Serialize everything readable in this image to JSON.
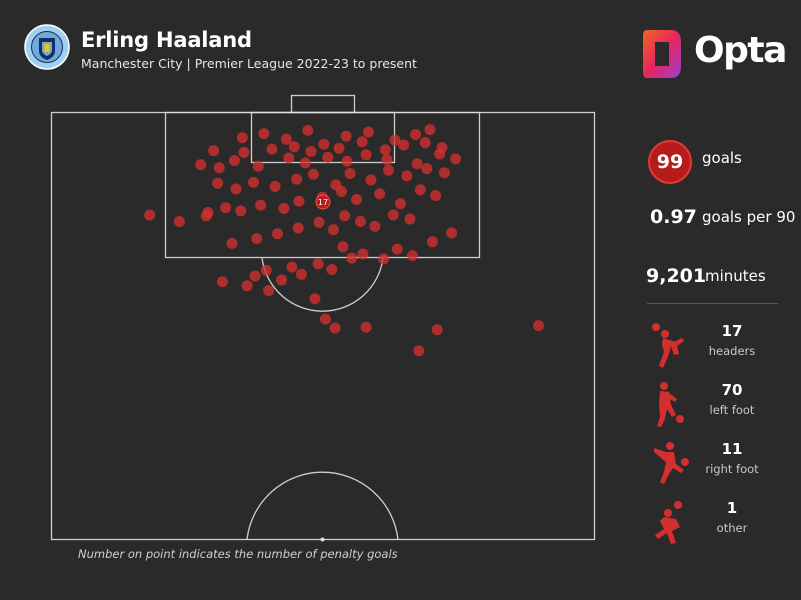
{
  "header": {
    "title": "Erling Haaland",
    "subtitle": "Manchester City | Premier League 2022-23 to present",
    "brand": "Opta"
  },
  "crest_text": "MANCHESTER CITY",
  "stats": {
    "goals_value": "99",
    "goals_label": "goals",
    "gp90_value": "0.97",
    "gp90_label": "goals per 90",
    "minutes_value": "9,201",
    "minutes_label": "minutes"
  },
  "body_parts": [
    {
      "count": "17",
      "label": "headers",
      "icon": "header-icon"
    },
    {
      "count": "70",
      "label": "left foot",
      "icon": "left-foot-icon"
    },
    {
      "count": "11",
      "label": "right foot",
      "icon": "right-foot-icon"
    },
    {
      "count": "1",
      "label": "other",
      "icon": "other-icon"
    }
  ],
  "footnote": "Number on point indicates the number of penalty goals",
  "colors": {
    "background": "#2b2a2a",
    "goal_dot": "#d32f2f",
    "pitch_line": "#e0e0e0",
    "opta_orange": "#f26522",
    "opta_purple": "#9b3fd1"
  },
  "chart_data": {
    "type": "scatter",
    "title": "Erling Haaland",
    "pitch": {
      "length_m": 52.5,
      "width_m": 68,
      "description": "attacking half, goal at top"
    },
    "penalty_point": {
      "x": 34,
      "y": 11,
      "label": "17"
    },
    "x": [
      21.4,
      24.5,
      25.5,
      27.2,
      26.9,
      28.8,
      30.1,
      31.3,
      33.4,
      35.1,
      37.6,
      36.5,
      39.0,
      41.6,
      43.3,
      45.2,
      47.7,
      50.1,
      22.6,
      25.7,
      28.3,
      30.9,
      33.5,
      35.3,
      36.7,
      38.7,
      40.5,
      42.8,
      44.9,
      19.6,
      21.8,
      23.7,
      26.2,
      29.1,
      31.0,
      33.9,
      36.3,
      38.2,
      41.1,
      43.7,
      46.2,
      48.1,
      20.8,
      23.1,
      25.3,
      28.0,
      30.7,
      32.8,
      35.6,
      37.4,
      40.0,
      42.2,
      44.5,
      47.0,
      49.2,
      18.7,
      21.0,
      22.9,
      25.9,
      29.7,
      31.8,
      34.6,
      37.0,
      39.4,
      42.0,
      45.8,
      48.6,
      50.6,
      20.3,
      24.1,
      27.6,
      30.4,
      32.5,
      34.1,
      36.0,
      38.9,
      41.8,
      44.1,
      46.8,
      48.9,
      23.9,
      26.6,
      29.4,
      32.1,
      36.9,
      39.7,
      43.0,
      45.6,
      47.4,
      12.3,
      16.0,
      19.4,
      33.0,
      34.3,
      35.5,
      39.4,
      46.0,
      48.3,
      61.0
    ],
    "y": [
      20.8,
      21.3,
      20.1,
      21.9,
      19.4,
      20.6,
      19.0,
      19.9,
      18.6,
      19.3,
      17.9,
      16.5,
      17.4,
      18.0,
      16.8,
      17.6,
      15.9,
      14.8,
      16.1,
      15.5,
      14.9,
      14.2,
      13.5,
      14.4,
      12.7,
      13.4,
      14.0,
      12.6,
      13.1,
      12.3,
      11.7,
      12.1,
      11.4,
      11.8,
      10.9,
      10.4,
      9.7,
      10.7,
      10.0,
      11.2,
      9.5,
      10.2,
      8.7,
      9.4,
      8.6,
      9.1,
      8.2,
      7.6,
      8.9,
      7.5,
      8.3,
      7.1,
      7.8,
      6.9,
      7.4,
      6.4,
      6.8,
      5.9,
      6.6,
      5.6,
      6.2,
      5.5,
      6.0,
      5.2,
      5.8,
      6.3,
      5.1,
      5.7,
      4.7,
      4.9,
      4.5,
      4.2,
      4.8,
      3.9,
      4.4,
      3.6,
      4.6,
      4.0,
      3.7,
      4.3,
      3.1,
      2.6,
      3.3,
      2.2,
      2.9,
      2.4,
      3.4,
      2.7,
      2.1,
      12.6,
      13.4,
      12.7,
      22.9,
      25.4,
      26.5,
      26.4,
      29.3,
      26.7,
      26.2
    ]
  }
}
